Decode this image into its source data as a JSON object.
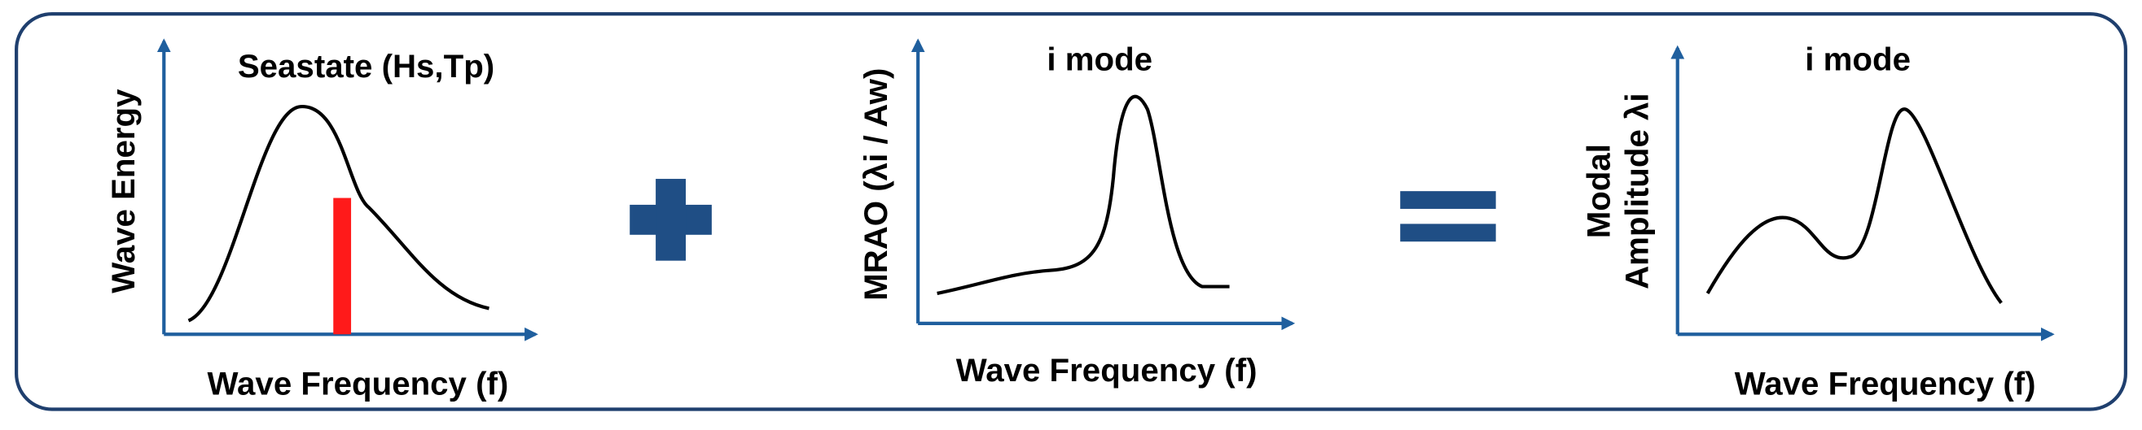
{
  "panels": [
    {
      "title": "Seastate (Hs,Tp)",
      "y_label": [
        "Wave Energy"
      ],
      "x_label": "Wave Frequency (f)"
    },
    {
      "title": "i mode",
      "y_label": [
        "MRAO (λi / Aw)"
      ],
      "x_label": "Wave Frequency (f)"
    },
    {
      "title": "i mode",
      "y_label": [
        "Modal",
        "Amplitude λi"
      ],
      "x_label": "Wave Frequency (f)"
    }
  ]
}
